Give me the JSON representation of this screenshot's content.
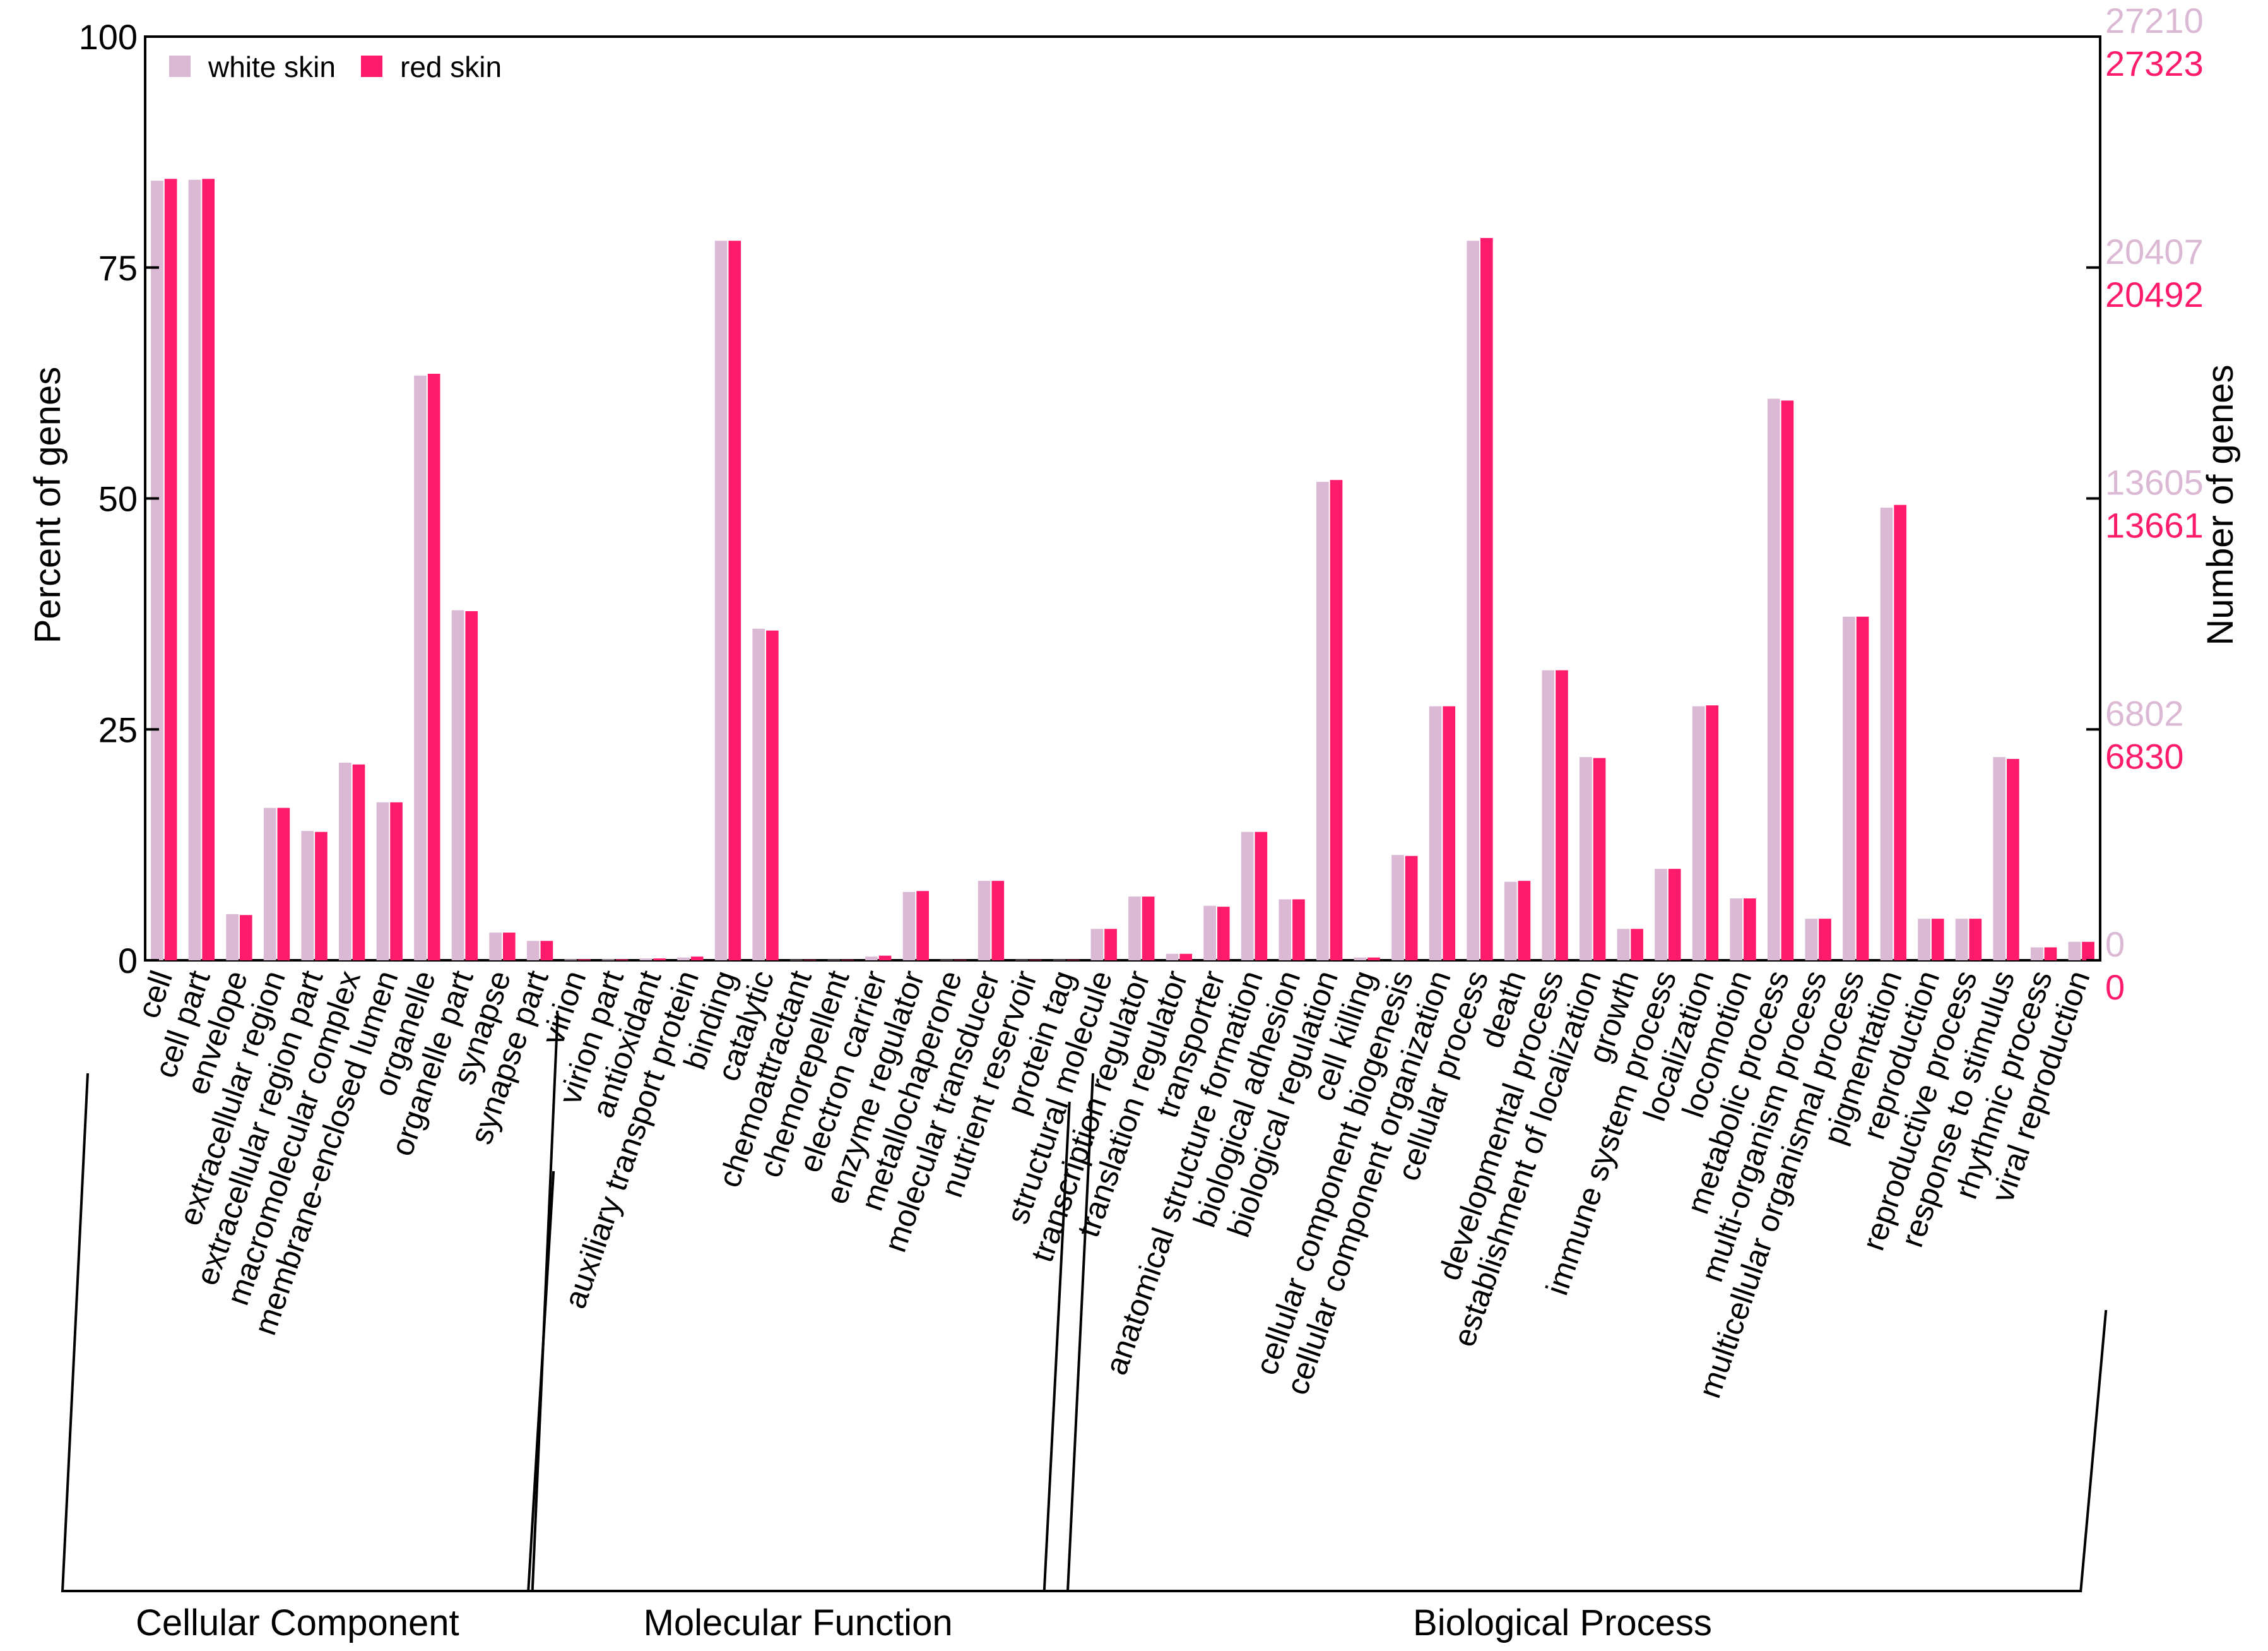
{
  "chart_data": {
    "type": "bar",
    "ylabel_left": "Percent of genes",
    "ylabel_right": "Number of genes",
    "ylim": [
      0,
      100
    ],
    "left_ticks": [
      "0",
      "25",
      "50",
      "75",
      "100"
    ],
    "right_ticks": [
      {
        "white": "0",
        "red": "0"
      },
      {
        "white": "6802",
        "red": "6830"
      },
      {
        "white": "13605",
        "red": "13661"
      },
      {
        "white": "20407",
        "red": "20492"
      },
      {
        "white": "27210",
        "red": "27323"
      }
    ],
    "legend": {
      "position": "top-left"
    },
    "colors": {
      "white": "#dbb9d4",
      "red": "#ff1b6b",
      "axis": "#000000"
    },
    "groups": [
      {
        "label": "Cellular Component",
        "start": 0,
        "end": 11
      },
      {
        "label": "Molecular Function",
        "start": 12,
        "end": 25
      },
      {
        "label": "Biological Process",
        "start": 26,
        "end": 51
      }
    ],
    "categories": [
      "cell",
      "cell part",
      "envelope",
      "extracellular region",
      "extracellular region part",
      "macromolecular complex",
      "membrane-enclosed lumen",
      "organelle",
      "organelle part",
      "synapse",
      "synapse part",
      "virion",
      "virion part",
      "antioxidant",
      "auxiliary transport protein",
      "binding",
      "catalytic",
      "chemoattractant",
      "chemorepellent",
      "electron carrier",
      "enzyme regulator",
      "metallochaperone",
      "molecular transducer",
      "nutrient reservoir",
      "protein tag",
      "structural molecule",
      "transcription regulator",
      "translation regulator",
      "transporter",
      "anatomical structure formation",
      "biological adhesion",
      "biological regulation",
      "cell killing",
      "cellular component biogenesis",
      "cellular component organization",
      "cellular process",
      "death",
      "developmental process",
      "establishment of localization",
      "growth",
      "immune system process",
      "localization",
      "locomotion",
      "metabolic process",
      "multi-organism process",
      "multicellular organismal process",
      "pigmentation",
      "reproduction",
      "reproductive process",
      "response to stimulus",
      "rhythmic process",
      "viral reproduction"
    ],
    "series": [
      {
        "name": "white skin",
        "values": [
          84.4,
          84.5,
          5.0,
          16.5,
          14.0,
          21.4,
          17.1,
          63.3,
          37.9,
          3.0,
          2.1,
          0.1,
          0.1,
          0.2,
          0.3,
          77.9,
          35.9,
          0.05,
          0.05,
          0.4,
          7.4,
          0.05,
          8.6,
          0.05,
          0.05,
          3.4,
          6.9,
          0.7,
          5.9,
          13.9,
          6.6,
          51.8,
          0.3,
          11.4,
          27.5,
          77.9,
          8.5,
          31.4,
          22.0,
          3.4,
          9.9,
          27.5,
          6.7,
          60.8,
          4.5,
          37.2,
          49.0,
          4.5,
          4.5,
          22.0,
          1.4,
          2.0
        ]
      },
      {
        "name": "red skin",
        "values": [
          84.6,
          84.6,
          4.9,
          16.5,
          13.9,
          21.2,
          17.1,
          63.5,
          37.8,
          3.0,
          2.1,
          0.1,
          0.1,
          0.2,
          0.4,
          77.9,
          35.7,
          0.05,
          0.05,
          0.5,
          7.5,
          0.05,
          8.6,
          0.05,
          0.05,
          3.4,
          6.9,
          0.7,
          5.8,
          13.9,
          6.6,
          52.0,
          0.3,
          11.3,
          27.5,
          78.2,
          8.6,
          31.4,
          21.9,
          3.4,
          9.9,
          27.6,
          6.7,
          60.6,
          4.5,
          37.2,
          49.3,
          4.5,
          4.5,
          21.8,
          1.4,
          2.0
        ]
      }
    ]
  }
}
